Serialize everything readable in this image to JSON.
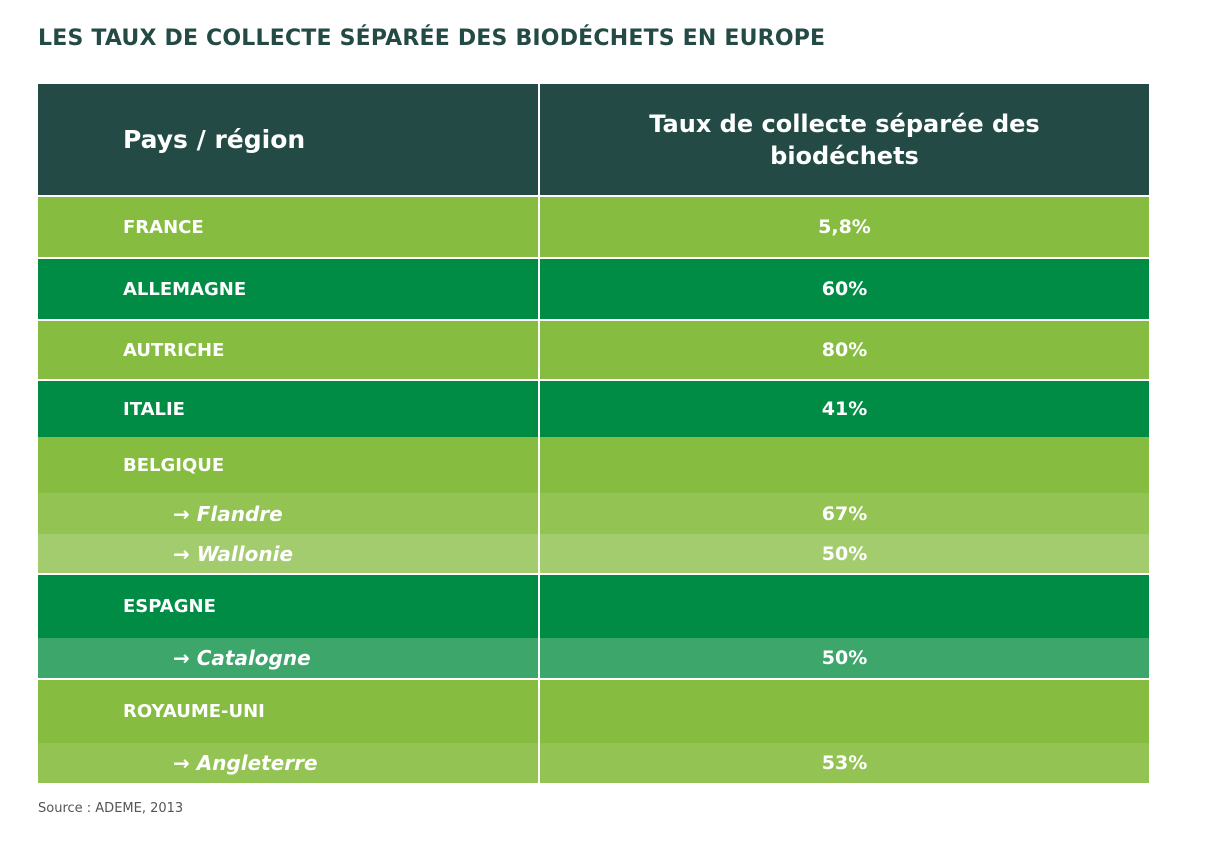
{
  "title": "LES TAUX DE COLLECTE SÉPARÉE DES BIODÉCHETS EN EUROPE",
  "source": "Source : ADEME, 2013",
  "colors": {
    "header": "#234a44",
    "light_green": "#86bd40",
    "dark_green": "#008c44",
    "sub_light_1": "#93c353",
    "sub_light_2": "#a3cc6e",
    "sub_dark": "#3da66b"
  },
  "chart_data": {
    "type": "table",
    "columns": [
      "Pays / région",
      "Taux de collecte séparée des biodéchets"
    ],
    "rows": [
      {
        "label": "FRANCE",
        "value": "5,8%",
        "sub": false
      },
      {
        "label": "ALLEMAGNE",
        "value": "60%",
        "sub": false
      },
      {
        "label": "AUTRICHE",
        "value": "80%",
        "sub": false
      },
      {
        "label": "ITALIE",
        "value": "41%",
        "sub": false
      },
      {
        "label": "BELGIQUE",
        "value": "",
        "sub": false
      },
      {
        "label": "→ Flandre",
        "value": "67%",
        "sub": true
      },
      {
        "label": "→ Wallonie",
        "value": "50%",
        "sub": true
      },
      {
        "label": "ESPAGNE",
        "value": "",
        "sub": false
      },
      {
        "label": "→ Catalogne",
        "value": "50%",
        "sub": true
      },
      {
        "label": "ROYAUME-UNI",
        "value": "",
        "sub": false
      },
      {
        "label": "→ Angleterre",
        "value": "53%",
        "sub": true
      }
    ]
  }
}
